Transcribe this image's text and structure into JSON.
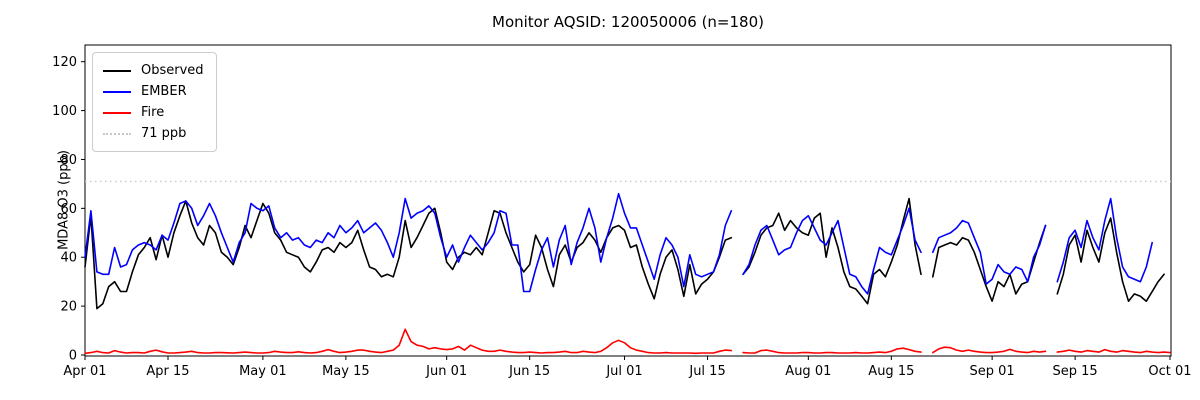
{
  "chart_data": {
    "type": "line",
    "title": "Monitor AQSID: 120050006 (n=180)",
    "xlabel": "",
    "ylabel": "MDA8 O3 (ppb)",
    "ylim": [
      0,
      127
    ],
    "yticks": [
      0,
      20,
      40,
      60,
      80,
      100,
      120
    ],
    "x_unit": "days since Apr 01",
    "x_range_days": 183,
    "xticks": [
      {
        "day": 0,
        "label": "Apr 01"
      },
      {
        "day": 14,
        "label": "Apr 15"
      },
      {
        "day": 30,
        "label": "May 01"
      },
      {
        "day": 44,
        "label": "May 15"
      },
      {
        "day": 61,
        "label": "Jun 01"
      },
      {
        "day": 75,
        "label": "Jun 15"
      },
      {
        "day": 91,
        "label": "Jul 01"
      },
      {
        "day": 105,
        "label": "Jul 15"
      },
      {
        "day": 122,
        "label": "Aug 01"
      },
      {
        "day": 136,
        "label": "Aug 15"
      },
      {
        "day": 153,
        "label": "Sep 01"
      },
      {
        "day": 167,
        "label": "Sep 15"
      },
      {
        "day": 183,
        "label": "Oct 01"
      }
    ],
    "threshold": {
      "value": 71,
      "label": "71 ppb",
      "color": "#c8c8c8",
      "style": "dotted"
    },
    "legend": [
      {
        "label": "Observed",
        "color": "#000000",
        "style": "solid"
      },
      {
        "label": "EMBER",
        "color": "#0000ff",
        "style": "solid"
      },
      {
        "label": "Fire",
        "color": "#ff0000",
        "style": "solid"
      },
      {
        "label": "71 ppb",
        "color": "#c8c8c8",
        "style": "dotted"
      }
    ],
    "legend_position": "upper-left",
    "grid": false,
    "series": [
      {
        "name": "Observed",
        "color": "#000000",
        "values": [
          36,
          57,
          19,
          21,
          28,
          30,
          26,
          26,
          34,
          41,
          44,
          48,
          39,
          49,
          40,
          50,
          57,
          63,
          54,
          48,
          45,
          53,
          50,
          42,
          40,
          37,
          44,
          53,
          48,
          55,
          62,
          58,
          50,
          47,
          42,
          41,
          40,
          36,
          34,
          38,
          43,
          44,
          42,
          46,
          44,
          46,
          51,
          43,
          36,
          35,
          32,
          33,
          32,
          40,
          55,
          44,
          48,
          53,
          58,
          60,
          50,
          38,
          35,
          40,
          42,
          41,
          44,
          41,
          50,
          59,
          58,
          50,
          44,
          38,
          34,
          37,
          49,
          44,
          35,
          28,
          41,
          45,
          38,
          44,
          46,
          50,
          47,
          42,
          48,
          52,
          53,
          51,
          44,
          45,
          36,
          29,
          23,
          33,
          40,
          43,
          35,
          24,
          37,
          25,
          29,
          31,
          34,
          40,
          47,
          48,
          null,
          33,
          36,
          42,
          49,
          52,
          53,
          58,
          51,
          55,
          52,
          50,
          49,
          56,
          58,
          40,
          52,
          44,
          34,
          28,
          27,
          24,
          21,
          33,
          35,
          32,
          38,
          45,
          55,
          64,
          45,
          33,
          null,
          32,
          44,
          45,
          46,
          45,
          48,
          47,
          42,
          35,
          28,
          22,
          30,
          28,
          33,
          25,
          29,
          30,
          38,
          46,
          53,
          null,
          25,
          33,
          45,
          49,
          38,
          51,
          44,
          38,
          50,
          56,
          42,
          30,
          22,
          25,
          24,
          22,
          26,
          30,
          33
        ]
      },
      {
        "name": "EMBER",
        "color": "#0000ff",
        "values": [
          40,
          59,
          34,
          33,
          33,
          44,
          36,
          37,
          43,
          45,
          46,
          45,
          43,
          49,
          47,
          54,
          62,
          63,
          60,
          53,
          57,
          62,
          57,
          50,
          44,
          38,
          46,
          50,
          62,
          60,
          59,
          61,
          52,
          48,
          50,
          47,
          48,
          45,
          44,
          47,
          46,
          50,
          48,
          53,
          50,
          52,
          55,
          50,
          52,
          54,
          51,
          46,
          40,
          50,
          64,
          56,
          58,
          59,
          61,
          58,
          48,
          40,
          45,
          38,
          44,
          49,
          46,
          43,
          46,
          50,
          59,
          58,
          45,
          45,
          26,
          26,
          35,
          43,
          48,
          36,
          47,
          53,
          37,
          46,
          52,
          60,
          52,
          38,
          48,
          56,
          66,
          58,
          52,
          52,
          45,
          38,
          31,
          41,
          48,
          45,
          40,
          28,
          41,
          33,
          32,
          33,
          34,
          41,
          53,
          59,
          null,
          33,
          37,
          45,
          51,
          53,
          47,
          41,
          43,
          44,
          50,
          55,
          57,
          52,
          47,
          45,
          50,
          55,
          44,
          33,
          32,
          28,
          25,
          35,
          44,
          42,
          41,
          47,
          53,
          60,
          47,
          42,
          null,
          42,
          48,
          49,
          50,
          52,
          55,
          54,
          48,
          42,
          29,
          31,
          37,
          34,
          33,
          36,
          35,
          30,
          40,
          45,
          53,
          null,
          30,
          38,
          48,
          51,
          44,
          55,
          48,
          43,
          55,
          64,
          48,
          36,
          32,
          31,
          30,
          36,
          46,
          null,
          null
        ]
      },
      {
        "name": "Fire",
        "color": "#ff0000",
        "values": [
          0.7,
          1,
          1.5,
          1,
          0.8,
          1.8,
          1.2,
          0.8,
          1,
          1,
          0.8,
          1.5,
          2,
          1.3,
          0.8,
          0.8,
          1,
          1.2,
          1.5,
          1,
          0.8,
          0.8,
          1,
          1,
          0.9,
          0.8,
          1,
          1.2,
          1,
          0.8,
          0.8,
          1,
          1.5,
          1.2,
          1,
          1,
          1.3,
          1,
          0.8,
          1,
          1.5,
          2.2,
          1.5,
          1,
          1.2,
          1.5,
          2,
          2,
          1.5,
          1.2,
          1,
          1.5,
          2,
          4,
          10.5,
          5.5,
          4,
          3.5,
          2.5,
          3,
          2.5,
          2.2,
          2.5,
          3.5,
          2,
          4,
          3,
          2,
          1.5,
          1.5,
          2,
          1.5,
          1.2,
          1,
          1,
          1.2,
          1,
          0.8,
          1,
          1,
          1.2,
          1.5,
          1,
          1,
          1.5,
          1.2,
          1,
          1.5,
          3,
          5,
          6,
          5,
          3,
          2,
          1.5,
          1,
          0.8,
          0.8,
          1,
          0.8,
          0.8,
          0.8,
          0.8,
          0.7,
          0.8,
          0.8,
          0.8,
          1.5,
          2,
          1.8,
          null,
          1,
          0.8,
          0.8,
          1.8,
          2,
          1.5,
          1,
          0.8,
          0.8,
          0.8,
          1,
          1,
          0.8,
          0.8,
          1,
          1,
          0.8,
          0.8,
          0.8,
          1,
          0.8,
          0.8,
          1,
          1.2,
          1,
          1.5,
          2.5,
          2.8,
          2.2,
          1.5,
          1.2,
          null,
          1,
          2.5,
          3.2,
          3,
          2,
          1.5,
          2,
          1.5,
          1.2,
          1,
          1,
          1.2,
          1.5,
          2.3,
          1.5,
          1.2,
          1,
          1.5,
          1.2,
          1.5,
          null,
          1.2,
          1.5,
          2,
          1.5,
          1.2,
          1.8,
          1.5,
          1.2,
          2.2,
          1.5,
          1.2,
          1.8,
          1.5,
          1.2,
          1,
          1.5,
          1.2,
          1,
          1.2,
          1
        ]
      }
    ]
  }
}
